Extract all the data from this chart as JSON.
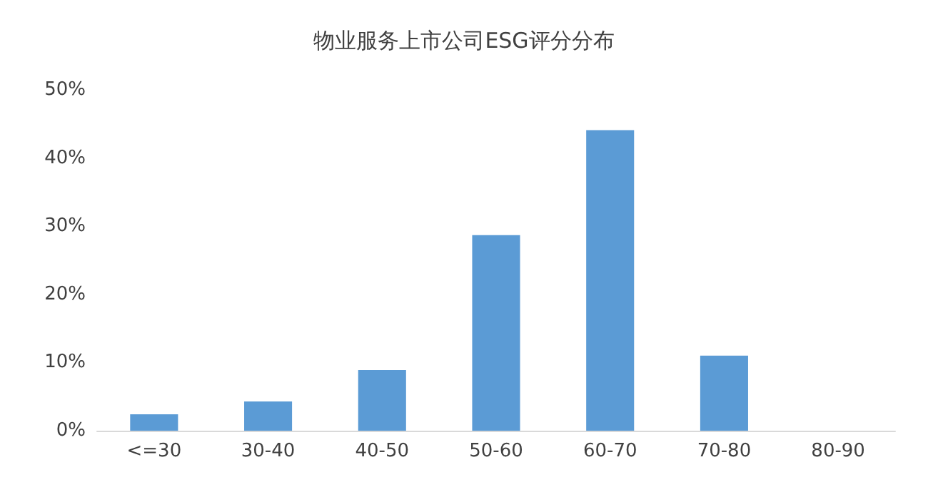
{
  "chart_data": {
    "type": "bar",
    "title": "物业服务上市公司ESG评分分布",
    "categories": [
      "<=30",
      "30-40",
      "40-50",
      "50-60",
      "60-70",
      "70-80",
      "80-90"
    ],
    "values": [
      2.4,
      4.3,
      8.9,
      28.7,
      44.1,
      11.0,
      0
    ],
    "color": "#5b9bd5",
    "ylim": [
      0,
      50
    ],
    "yticks": [
      {
        "value": 0,
        "label": "0%"
      },
      {
        "value": 10,
        "label": "10%"
      },
      {
        "value": 20,
        "label": "20%"
      },
      {
        "value": 30,
        "label": "30%"
      },
      {
        "value": 40,
        "label": "40%"
      },
      {
        "value": 50,
        "label": "50%"
      }
    ],
    "grid": false
  }
}
